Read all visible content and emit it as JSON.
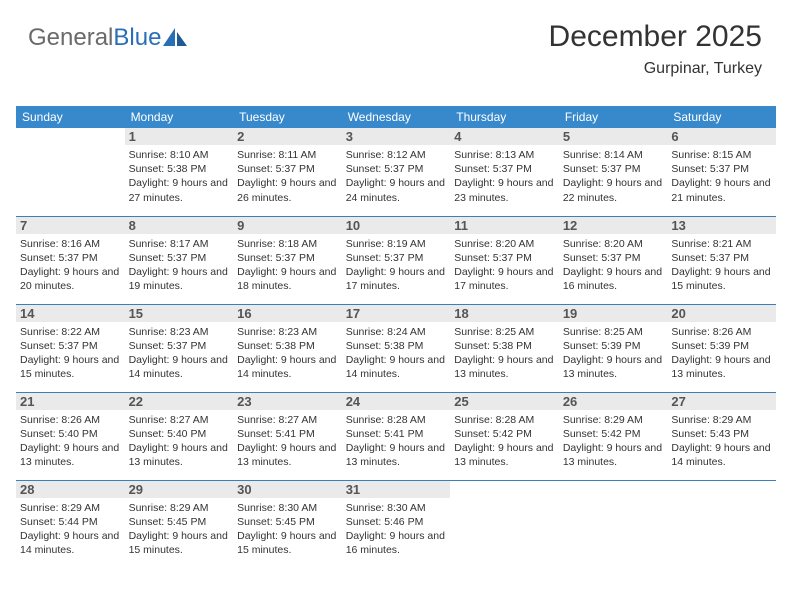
{
  "logo": {
    "text1": "General",
    "text2": "Blue"
  },
  "header": {
    "title": "December 2025",
    "location": "Gurpinar, Turkey"
  },
  "calendar": {
    "header_bg": "#3789cc",
    "header_fg": "#ffffff",
    "row_border": "#3a7fb8",
    "daynum_bg": "#eaeaea",
    "dayNames": [
      "Sunday",
      "Monday",
      "Tuesday",
      "Wednesday",
      "Thursday",
      "Friday",
      "Saturday"
    ],
    "weeks": [
      [
        {
          "n": "",
          "sr": "",
          "ss": "",
          "dl": ""
        },
        {
          "n": "1",
          "sr": "Sunrise: 8:10 AM",
          "ss": "Sunset: 5:38 PM",
          "dl": "Daylight: 9 hours and 27 minutes."
        },
        {
          "n": "2",
          "sr": "Sunrise: 8:11 AM",
          "ss": "Sunset: 5:37 PM",
          "dl": "Daylight: 9 hours and 26 minutes."
        },
        {
          "n": "3",
          "sr": "Sunrise: 8:12 AM",
          "ss": "Sunset: 5:37 PM",
          "dl": "Daylight: 9 hours and 24 minutes."
        },
        {
          "n": "4",
          "sr": "Sunrise: 8:13 AM",
          "ss": "Sunset: 5:37 PM",
          "dl": "Daylight: 9 hours and 23 minutes."
        },
        {
          "n": "5",
          "sr": "Sunrise: 8:14 AM",
          "ss": "Sunset: 5:37 PM",
          "dl": "Daylight: 9 hours and 22 minutes."
        },
        {
          "n": "6",
          "sr": "Sunrise: 8:15 AM",
          "ss": "Sunset: 5:37 PM",
          "dl": "Daylight: 9 hours and 21 minutes."
        }
      ],
      [
        {
          "n": "7",
          "sr": "Sunrise: 8:16 AM",
          "ss": "Sunset: 5:37 PM",
          "dl": "Daylight: 9 hours and 20 minutes."
        },
        {
          "n": "8",
          "sr": "Sunrise: 8:17 AM",
          "ss": "Sunset: 5:37 PM",
          "dl": "Daylight: 9 hours and 19 minutes."
        },
        {
          "n": "9",
          "sr": "Sunrise: 8:18 AM",
          "ss": "Sunset: 5:37 PM",
          "dl": "Daylight: 9 hours and 18 minutes."
        },
        {
          "n": "10",
          "sr": "Sunrise: 8:19 AM",
          "ss": "Sunset: 5:37 PM",
          "dl": "Daylight: 9 hours and 17 minutes."
        },
        {
          "n": "11",
          "sr": "Sunrise: 8:20 AM",
          "ss": "Sunset: 5:37 PM",
          "dl": "Daylight: 9 hours and 17 minutes."
        },
        {
          "n": "12",
          "sr": "Sunrise: 8:20 AM",
          "ss": "Sunset: 5:37 PM",
          "dl": "Daylight: 9 hours and 16 minutes."
        },
        {
          "n": "13",
          "sr": "Sunrise: 8:21 AM",
          "ss": "Sunset: 5:37 PM",
          "dl": "Daylight: 9 hours and 15 minutes."
        }
      ],
      [
        {
          "n": "14",
          "sr": "Sunrise: 8:22 AM",
          "ss": "Sunset: 5:37 PM",
          "dl": "Daylight: 9 hours and 15 minutes."
        },
        {
          "n": "15",
          "sr": "Sunrise: 8:23 AM",
          "ss": "Sunset: 5:37 PM",
          "dl": "Daylight: 9 hours and 14 minutes."
        },
        {
          "n": "16",
          "sr": "Sunrise: 8:23 AM",
          "ss": "Sunset: 5:38 PM",
          "dl": "Daylight: 9 hours and 14 minutes."
        },
        {
          "n": "17",
          "sr": "Sunrise: 8:24 AM",
          "ss": "Sunset: 5:38 PM",
          "dl": "Daylight: 9 hours and 14 minutes."
        },
        {
          "n": "18",
          "sr": "Sunrise: 8:25 AM",
          "ss": "Sunset: 5:38 PM",
          "dl": "Daylight: 9 hours and 13 minutes."
        },
        {
          "n": "19",
          "sr": "Sunrise: 8:25 AM",
          "ss": "Sunset: 5:39 PM",
          "dl": "Daylight: 9 hours and 13 minutes."
        },
        {
          "n": "20",
          "sr": "Sunrise: 8:26 AM",
          "ss": "Sunset: 5:39 PM",
          "dl": "Daylight: 9 hours and 13 minutes."
        }
      ],
      [
        {
          "n": "21",
          "sr": "Sunrise: 8:26 AM",
          "ss": "Sunset: 5:40 PM",
          "dl": "Daylight: 9 hours and 13 minutes."
        },
        {
          "n": "22",
          "sr": "Sunrise: 8:27 AM",
          "ss": "Sunset: 5:40 PM",
          "dl": "Daylight: 9 hours and 13 minutes."
        },
        {
          "n": "23",
          "sr": "Sunrise: 8:27 AM",
          "ss": "Sunset: 5:41 PM",
          "dl": "Daylight: 9 hours and 13 minutes."
        },
        {
          "n": "24",
          "sr": "Sunrise: 8:28 AM",
          "ss": "Sunset: 5:41 PM",
          "dl": "Daylight: 9 hours and 13 minutes."
        },
        {
          "n": "25",
          "sr": "Sunrise: 8:28 AM",
          "ss": "Sunset: 5:42 PM",
          "dl": "Daylight: 9 hours and 13 minutes."
        },
        {
          "n": "26",
          "sr": "Sunrise: 8:29 AM",
          "ss": "Sunset: 5:42 PM",
          "dl": "Daylight: 9 hours and 13 minutes."
        },
        {
          "n": "27",
          "sr": "Sunrise: 8:29 AM",
          "ss": "Sunset: 5:43 PM",
          "dl": "Daylight: 9 hours and 14 minutes."
        }
      ],
      [
        {
          "n": "28",
          "sr": "Sunrise: 8:29 AM",
          "ss": "Sunset: 5:44 PM",
          "dl": "Daylight: 9 hours and 14 minutes."
        },
        {
          "n": "29",
          "sr": "Sunrise: 8:29 AM",
          "ss": "Sunset: 5:45 PM",
          "dl": "Daylight: 9 hours and 15 minutes."
        },
        {
          "n": "30",
          "sr": "Sunrise: 8:30 AM",
          "ss": "Sunset: 5:45 PM",
          "dl": "Daylight: 9 hours and 15 minutes."
        },
        {
          "n": "31",
          "sr": "Sunrise: 8:30 AM",
          "ss": "Sunset: 5:46 PM",
          "dl": "Daylight: 9 hours and 16 minutes."
        },
        {
          "n": "",
          "sr": "",
          "ss": "",
          "dl": ""
        },
        {
          "n": "",
          "sr": "",
          "ss": "",
          "dl": ""
        },
        {
          "n": "",
          "sr": "",
          "ss": "",
          "dl": ""
        }
      ]
    ]
  }
}
